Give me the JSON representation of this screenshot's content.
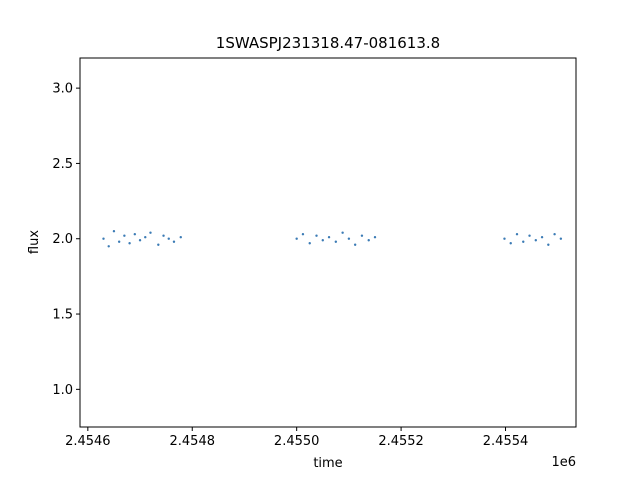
{
  "chart_data": {
    "type": "scatter",
    "title": "1SWASPJ231318.47-081613.8",
    "xlabel": "time",
    "ylabel": "flux",
    "x_offset_label": "1e6",
    "xlim": [
      2454585,
      2455535
    ],
    "ylim": [
      0.75,
      3.2
    ],
    "x_ticks": [
      2454600,
      2454800,
      2455000,
      2455200,
      2455400
    ],
    "x_tick_labels": [
      "2.4546",
      "2.4548",
      "2.4550",
      "2.4552",
      "2.4554"
    ],
    "y_ticks": [
      1.0,
      1.5,
      2.0,
      2.5,
      3.0
    ],
    "y_tick_labels": [
      "1.0",
      "1.5",
      "2.0",
      "2.5",
      "3.0"
    ],
    "grid": false,
    "marker_color": "#3b7bb5",
    "series": [
      {
        "x": [
          2454630,
          2454640,
          2454650,
          2454660,
          2454670,
          2454680,
          2454690,
          2454700,
          2454710,
          2454720,
          2454735,
          2454745,
          2454755,
          2454765,
          2454778,
          2455000,
          2455012,
          2455025,
          2455038,
          2455050,
          2455062,
          2455075,
          2455088,
          2455100,
          2455112,
          2455125,
          2455138,
          2455150,
          2455398,
          2455410,
          2455422,
          2455434,
          2455446,
          2455458,
          2455470,
          2455482,
          2455494,
          2455506
        ],
        "y": [
          2.0,
          1.95,
          2.05,
          1.98,
          2.02,
          1.97,
          2.03,
          1.99,
          2.01,
          2.04,
          1.96,
          2.02,
          2.0,
          1.98,
          2.01,
          2.0,
          2.03,
          1.97,
          2.02,
          1.99,
          2.01,
          1.98,
          2.04,
          2.0,
          1.96,
          2.02,
          1.99,
          2.01,
          2.0,
          1.97,
          2.03,
          1.98,
          2.02,
          1.99,
          2.01,
          1.96,
          2.03,
          2.0
        ]
      }
    ]
  }
}
